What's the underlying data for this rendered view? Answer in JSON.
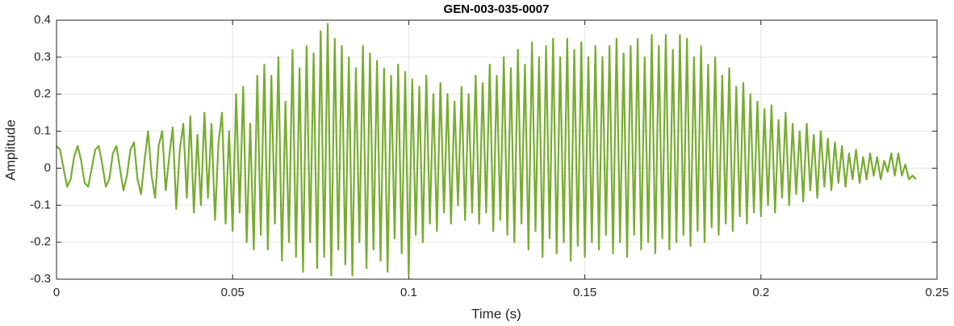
{
  "chart_data": {
    "type": "line",
    "title": "GEN-003-035-0007",
    "x_label": "Time (s)",
    "y_label": "Amplitude",
    "xlim": [
      0,
      0.25
    ],
    "xticks": [
      0,
      0.05,
      0.1,
      0.15,
      0.2,
      0.25
    ],
    "ylim": [
      -0.3,
      0.4
    ],
    "yticks": [
      -0.3,
      -0.2,
      -0.1,
      0,
      0.1,
      0.2,
      0.3,
      0.4
    ],
    "grid": true,
    "x": [
      0,
      0.001,
      0.002,
      0.003,
      0.004,
      0.005,
      0.006,
      0.007,
      0.008,
      0.009,
      0.01,
      0.011,
      0.012,
      0.013,
      0.014,
      0.015,
      0.016,
      0.017,
      0.018,
      0.019,
      0.02,
      0.021,
      0.022,
      0.023,
      0.024,
      0.025,
      0.026,
      0.027,
      0.028,
      0.029,
      0.03,
      0.031,
      0.032,
      0.033,
      0.034,
      0.035,
      0.036,
      0.037,
      0.038,
      0.039,
      0.04,
      0.041,
      0.042,
      0.043,
      0.044,
      0.045,
      0.046,
      0.047,
      0.048,
      0.049,
      0.05,
      0.051,
      0.052,
      0.053,
      0.054,
      0.055,
      0.056,
      0.057,
      0.058,
      0.059,
      0.06,
      0.061,
      0.062,
      0.063,
      0.064,
      0.065,
      0.066,
      0.067,
      0.068,
      0.069,
      0.07,
      0.071,
      0.072,
      0.073,
      0.074,
      0.075,
      0.076,
      0.077,
      0.078,
      0.079,
      0.08,
      0.081,
      0.082,
      0.083,
      0.084,
      0.085,
      0.086,
      0.087,
      0.088,
      0.089,
      0.09,
      0.091,
      0.092,
      0.093,
      0.094,
      0.095,
      0.096,
      0.097,
      0.098,
      0.099,
      0.1,
      0.101,
      0.102,
      0.103,
      0.104,
      0.105,
      0.106,
      0.107,
      0.108,
      0.109,
      0.11,
      0.111,
      0.112,
      0.113,
      0.114,
      0.115,
      0.116,
      0.117,
      0.118,
      0.119,
      0.12,
      0.121,
      0.122,
      0.123,
      0.124,
      0.125,
      0.126,
      0.127,
      0.128,
      0.129,
      0.13,
      0.131,
      0.132,
      0.133,
      0.134,
      0.135,
      0.136,
      0.137,
      0.138,
      0.139,
      0.14,
      0.141,
      0.142,
      0.143,
      0.144,
      0.145,
      0.146,
      0.147,
      0.148,
      0.149,
      0.15,
      0.151,
      0.152,
      0.153,
      0.154,
      0.155,
      0.156,
      0.157,
      0.158,
      0.159,
      0.16,
      0.161,
      0.162,
      0.163,
      0.164,
      0.165,
      0.166,
      0.167,
      0.168,
      0.169,
      0.17,
      0.171,
      0.172,
      0.173,
      0.174,
      0.175,
      0.176,
      0.177,
      0.178,
      0.179,
      0.18,
      0.181,
      0.182,
      0.183,
      0.184,
      0.185,
      0.186,
      0.187,
      0.188,
      0.189,
      0.19,
      0.191,
      0.192,
      0.193,
      0.194,
      0.195,
      0.196,
      0.197,
      0.198,
      0.199,
      0.2,
      0.201,
      0.202,
      0.203,
      0.204,
      0.205,
      0.206,
      0.207,
      0.208,
      0.209,
      0.21,
      0.211,
      0.212,
      0.213,
      0.214,
      0.215,
      0.216,
      0.217,
      0.218,
      0.219,
      0.22,
      0.221,
      0.222,
      0.223,
      0.224,
      0.225,
      0.226,
      0.227,
      0.228,
      0.229,
      0.23,
      0.231,
      0.232,
      0.233,
      0.234,
      0.235,
      0.236,
      0.237,
      0.238,
      0.239,
      0.24,
      0.241,
      0.242,
      0.243,
      0.244
    ],
    "series": [
      {
        "name": "Amplitude",
        "color": "#77ac30",
        "values": [
          0.06,
          0.05,
          0.0,
          -0.05,
          -0.03,
          0.03,
          0.06,
          0.02,
          -0.04,
          -0.05,
          0.0,
          0.05,
          0.06,
          0.01,
          -0.05,
          -0.03,
          0.04,
          0.06,
          0.0,
          -0.06,
          -0.02,
          0.05,
          0.07,
          -0.03,
          -0.07,
          0.02,
          0.1,
          -0.02,
          -0.08,
          0.06,
          0.1,
          -0.06,
          0.03,
          0.11,
          -0.11,
          0.05,
          0.12,
          -0.08,
          0.14,
          -0.12,
          0.09,
          -0.1,
          0.15,
          -0.08,
          0.12,
          -0.14,
          0.07,
          0.15,
          -0.15,
          0.1,
          -0.17,
          0.2,
          -0.12,
          0.22,
          -0.2,
          0.12,
          -0.22,
          0.25,
          -0.18,
          0.28,
          -0.22,
          0.25,
          -0.15,
          0.3,
          -0.25,
          0.18,
          -0.2,
          0.32,
          -0.24,
          0.27,
          -0.28,
          0.33,
          -0.2,
          0.31,
          -0.27,
          0.37,
          -0.24,
          0.39,
          -0.29,
          0.35,
          -0.22,
          0.33,
          -0.26,
          0.3,
          -0.29,
          0.27,
          -0.2,
          0.33,
          -0.27,
          0.31,
          -0.22,
          0.29,
          -0.25,
          0.27,
          -0.28,
          0.25,
          -0.19,
          0.28,
          -0.23,
          0.26,
          -0.29,
          0.24,
          -0.18,
          0.22,
          -0.2,
          0.25,
          -0.15,
          0.2,
          -0.17,
          0.23,
          -0.12,
          0.2,
          -0.15,
          0.18,
          -0.1,
          0.22,
          -0.14,
          0.2,
          -0.12,
          0.25,
          -0.15,
          0.23,
          -0.12,
          0.28,
          -0.17,
          0.25,
          -0.14,
          0.3,
          -0.18,
          0.27,
          -0.2,
          0.32,
          -0.15,
          0.28,
          -0.22,
          0.34,
          -0.17,
          0.3,
          -0.24,
          0.33,
          -0.19,
          0.35,
          -0.23,
          0.3,
          -0.2,
          0.35,
          -0.25,
          0.32,
          -0.21,
          0.34,
          -0.24,
          0.3,
          -0.2,
          0.33,
          -0.22,
          0.3,
          -0.18,
          0.33,
          -0.23,
          0.35,
          -0.2,
          0.31,
          -0.24,
          0.33,
          -0.18,
          0.35,
          -0.22,
          0.3,
          -0.2,
          0.36,
          -0.23,
          0.33,
          -0.19,
          0.36,
          -0.22,
          0.32,
          -0.2,
          0.36,
          -0.18,
          0.35,
          -0.21,
          0.3,
          -0.17,
          0.33,
          -0.2,
          0.28,
          -0.16,
          0.3,
          -0.18,
          0.25,
          -0.15,
          0.27,
          -0.17,
          0.22,
          -0.13,
          0.23,
          -0.15,
          0.2,
          -0.12,
          0.18,
          -0.13,
          0.16,
          -0.1,
          0.17,
          -0.12,
          0.13,
          -0.08,
          0.15,
          -0.1,
          0.12,
          -0.07,
          0.1,
          -0.09,
          0.12,
          -0.06,
          0.09,
          -0.08,
          0.1,
          -0.05,
          0.08,
          -0.06,
          0.07,
          -0.04,
          0.06,
          -0.05,
          0.04,
          -0.03,
          0.05,
          -0.04,
          0.03,
          -0.03,
          0.04,
          -0.02,
          0.03,
          -0.03,
          0.02,
          -0.01,
          0.04,
          -0.02,
          0.04,
          -0.02,
          0.01,
          -0.03,
          -0.02,
          -0.03
        ]
      }
    ]
  }
}
